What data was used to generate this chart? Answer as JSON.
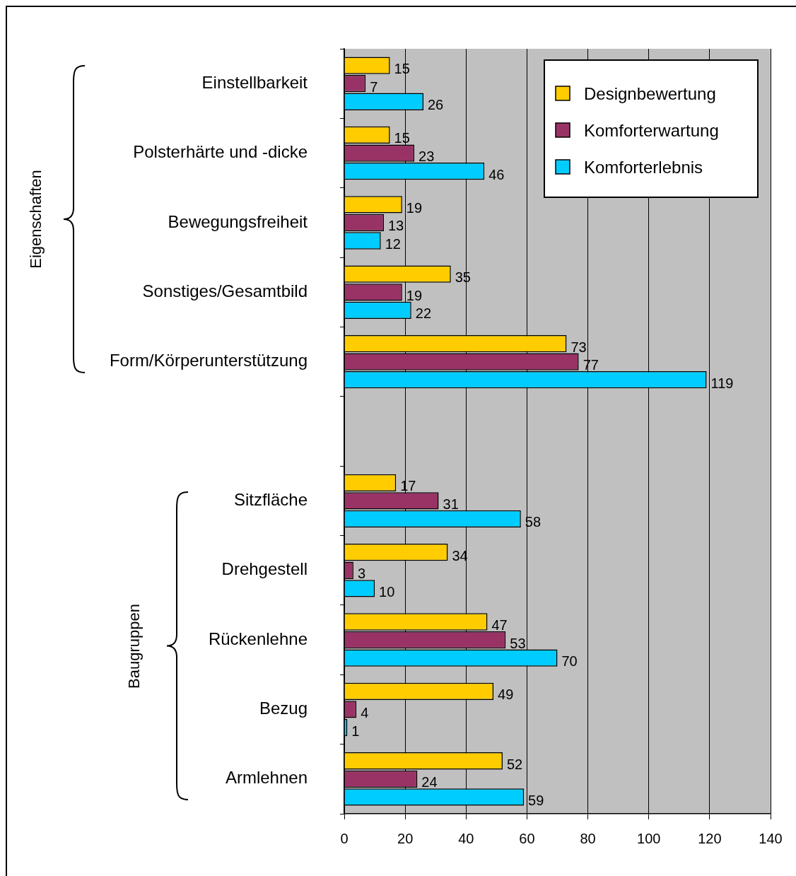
{
  "chart_data": {
    "type": "bar",
    "orientation": "horizontal",
    "categories": [
      "Einstellbarkeit",
      "Polsterhärte und -dicke",
      "Bewegungsfreiheit",
      "Sonstiges/Gesamtbild",
      "Form/Körperunterstützung",
      null,
      "Sitzfläche",
      "Drehgestell",
      "Rückenlehne",
      "Bezug",
      "Armlehnen"
    ],
    "series": [
      {
        "name": "Designbewertung",
        "color": "#ffcc00",
        "values": [
          15,
          15,
          19,
          35,
          73,
          null,
          17,
          34,
          47,
          49,
          52
        ]
      },
      {
        "name": "Komforterwartung",
        "color": "#993366",
        "values": [
          7,
          23,
          13,
          19,
          77,
          null,
          31,
          3,
          53,
          4,
          24
        ]
      },
      {
        "name": "Komforterlebnis",
        "color": "#00ccff",
        "values": [
          26,
          46,
          12,
          22,
          119,
          null,
          58,
          10,
          70,
          1,
          59
        ]
      }
    ],
    "xlim": [
      0,
      140
    ],
    "xticks": [
      0,
      20,
      40,
      60,
      80,
      100,
      120,
      140
    ],
    "grid": "x",
    "legend": "top right",
    "data_labels": true,
    "annotations": [
      "Eigenschaften",
      "Baugruppen"
    ]
  }
}
